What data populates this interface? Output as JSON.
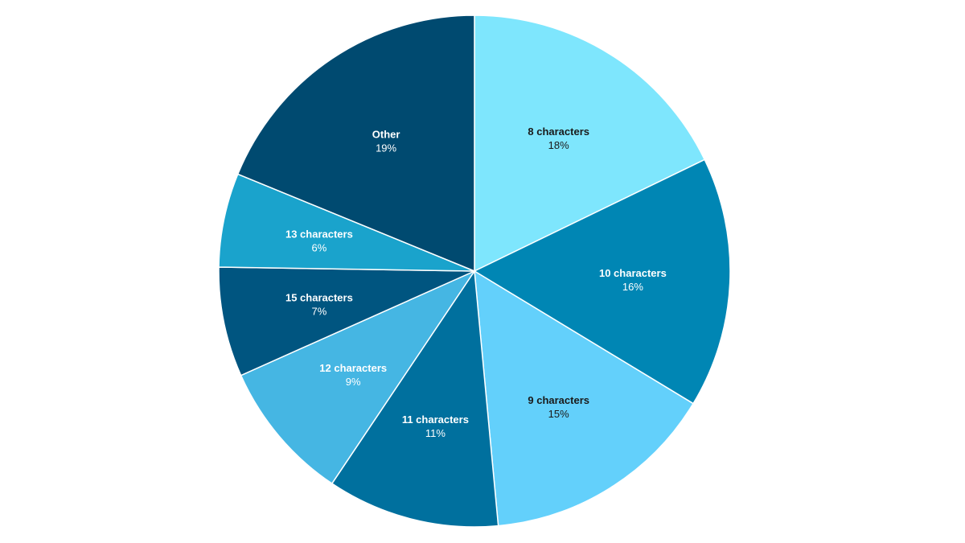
{
  "chart_data": {
    "type": "pie",
    "title": "",
    "start": "12 o'clock, clockwise",
    "slices": [
      {
        "label": "8 characters",
        "value": 18,
        "display": "18%",
        "color": "#7ee6fd",
        "text_color": "#1a1a1a"
      },
      {
        "label": "10 characters",
        "value": 16,
        "display": "16%",
        "color": "#0086b4",
        "text_color": "#ffffff"
      },
      {
        "label": "9 characters",
        "value": 15,
        "display": "15%",
        "color": "#63d0fb",
        "text_color": "#1a1a1a"
      },
      {
        "label": "11 characters",
        "value": 11,
        "display": "11%",
        "color": "#00709e",
        "text_color": "#ffffff"
      },
      {
        "label": "12 characters",
        "value": 9,
        "display": "9%",
        "color": "#45b6e3",
        "text_color": "#ffffff"
      },
      {
        "label": "15 characters",
        "value": 7,
        "display": "7%",
        "color": "#005580",
        "text_color": "#ffffff"
      },
      {
        "label": "13 characters",
        "value": 6,
        "display": "6%",
        "color": "#1aa3cc",
        "text_color": "#ffffff"
      },
      {
        "label": "Other",
        "value": 19,
        "display": "19%",
        "color": "#004a70",
        "text_color": "#ffffff"
      }
    ]
  }
}
